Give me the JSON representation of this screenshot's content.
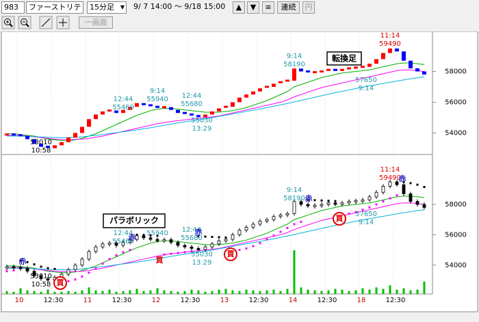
{
  "toolbar": {
    "code": "983",
    "name": "ファーストリテ",
    "interval": "15分足",
    "range": "9/ 7 14:00 〜 9/18 15:00",
    "nav": [
      "▲",
      "▼",
      "≡"
    ],
    "buttons": [
      "連続",
      "円"
    ],
    "single_view": "一画面"
  },
  "chart_data": [
    {
      "type": "block",
      "label": "転換足",
      "up_color": "#ff0000",
      "down_color": "#0000ff",
      "values": [
        53900,
        53850,
        53800,
        53600,
        53300,
        53100,
        53010,
        53200,
        53400,
        53700,
        54000,
        54400,
        54900,
        55200,
        55400,
        55460,
        55300,
        55500,
        55700,
        55940,
        55800,
        55700,
        55600,
        55680,
        55500,
        55300,
        55200,
        55100,
        55030,
        55200,
        55400,
        55600,
        55700,
        56000,
        56300,
        56500,
        56700,
        56900,
        57000,
        57200,
        57300,
        57400,
        58190,
        58000,
        57900,
        57950,
        58000,
        58100,
        58000,
        58100,
        58200,
        58250,
        58300,
        58500,
        58800,
        59200,
        59490,
        59300,
        58700,
        58200,
        58000,
        57800
      ],
      "lines": [
        {
          "color": "#00b000",
          "values": [
            53950,
            53950,
            53900,
            53850,
            53800,
            53700,
            53600,
            53550,
            53500,
            53500,
            53550,
            53650,
            53800,
            53950,
            54150,
            54350,
            54550,
            54750,
            54950,
            55150,
            55300,
            55450,
            55550,
            55600,
            55600,
            55550,
            55500,
            55450,
            55400,
            55350,
            55350,
            55350,
            55400,
            55450,
            55550,
            55650,
            55800,
            55950,
            56100,
            56300,
            56500,
            56700,
            57000,
            57150,
            57300,
            57450,
            57600,
            57700,
            57800,
            57900,
            57950,
            58000,
            58050,
            58100,
            58200,
            58300,
            58400,
            58500,
            58550,
            58550,
            58500,
            58450
          ]
        },
        {
          "color": "#ff00ff",
          "values": [
            53850,
            53850,
            53850,
            53800,
            53750,
            53700,
            53650,
            53600,
            53580,
            53570,
            53580,
            53600,
            53650,
            53720,
            53800,
            53900,
            54000,
            54100,
            54200,
            54300,
            54400,
            54500,
            54600,
            54680,
            54750,
            54800,
            54850,
            54900,
            54950,
            55000,
            55050,
            55100,
            55200,
            55300,
            55400,
            55500,
            55600,
            55700,
            55800,
            55900,
            56000,
            56150,
            56350,
            56500,
            56650,
            56800,
            56950,
            57050,
            57150,
            57250,
            57350,
            57450,
            57550,
            57650,
            57750,
            57850,
            57950,
            58050,
            58100,
            58100,
            58050,
            58000
          ]
        },
        {
          "color": "#00b4e0",
          "values": [
            53800,
            53800,
            53800,
            53780,
            53760,
            53740,
            53720,
            53700,
            53700,
            53700,
            53720,
            53750,
            53800,
            53850,
            53900,
            53960,
            54020,
            54080,
            54140,
            54200,
            54270,
            54340,
            54420,
            54500,
            54580,
            54650,
            54720,
            54790,
            54850,
            54920,
            55000,
            55080,
            55160,
            55240,
            55320,
            55400,
            55480,
            55560,
            55650,
            55740,
            55830,
            55920,
            56020,
            56120,
            56220,
            56320,
            56420,
            56520,
            56620,
            56710,
            56800,
            56890,
            56980,
            57060,
            57140,
            57220,
            57300,
            57380,
            57450,
            57520,
            57590,
            57650
          ]
        }
      ],
      "ylim": [
        52600,
        60600
      ],
      "yticks": [
        54000,
        56000,
        58000
      ],
      "annotations": [
        {
          "time": "12:44",
          "price": 55460,
          "color": "#2098a8"
        },
        {
          "time": "9:14",
          "price": 55940,
          "color": "#2098a8"
        },
        {
          "time": "12:44",
          "price": 55680,
          "color": "#2098a8"
        },
        {
          "time": "13:29",
          "price": 55030,
          "color": "#2098a8"
        },
        {
          "time": "10:58",
          "price": 53010,
          "color": "#000000"
        },
        {
          "time": "9:14",
          "price": 58190,
          "color": "#2098a8"
        },
        {
          "time": "11:14",
          "price": 59490,
          "color": "#e00000"
        },
        {
          "time": "9:14",
          "price": 57650,
          "color": "#2098a8"
        }
      ]
    },
    {
      "type": "candlestick",
      "label": "パラボリック",
      "categories": [
        null,
        null,
        "10",
        null,
        null,
        null,
        null,
        "12:30",
        null,
        null,
        null,
        null,
        "11",
        null,
        null,
        null,
        null,
        "12:30",
        null,
        null,
        null,
        null,
        "12",
        null,
        null,
        null,
        null,
        "12:30",
        null,
        null,
        null,
        null,
        "13",
        null,
        null,
        null,
        null,
        "12:30",
        null,
        null,
        null,
        null,
        "14",
        null,
        null,
        null,
        null,
        "12:30",
        null,
        null,
        null,
        null,
        "18",
        null,
        null,
        null,
        null,
        "12:30",
        null,
        null,
        null,
        null
      ],
      "sar": {
        "above_color": "#000000",
        "below_color": "#ff00ff",
        "values": [
          53600,
          53650,
          54300,
          54200,
          54050,
          53900,
          53800,
          53750,
          52900,
          52950,
          53050,
          53250,
          53500,
          53800,
          54100,
          54400,
          54650,
          54850,
          55000,
          56000,
          55980,
          55960,
          55940,
          54700,
          54750,
          54800,
          54850,
          54900,
          55900,
          55880,
          55860,
          55840,
          55820,
          54950,
          55000,
          55100,
          55250,
          55450,
          55700,
          55950,
          56200,
          56450,
          56700,
          56850,
          58300,
          58280,
          58260,
          58240,
          58220,
          57300,
          57400,
          57500,
          57650,
          57800,
          58000,
          58200,
          58400,
          58600,
          59490,
          59400,
          59300,
          59150
        ]
      },
      "volume": {
        "color": "#00c000",
        "values": [
          4,
          3,
          8,
          5,
          4,
          3,
          6,
          3,
          3,
          4,
          3,
          5,
          9,
          5,
          4,
          6,
          3,
          4,
          5,
          7,
          4,
          5,
          8,
          5,
          4,
          3,
          4,
          6,
          5,
          3,
          4,
          6,
          7,
          5,
          4,
          6,
          5,
          4,
          5,
          6,
          4,
          7,
          60,
          9,
          6,
          5,
          4,
          5,
          7,
          6,
          4,
          5,
          8,
          6,
          9,
          7,
          12,
          6,
          8,
          5,
          6,
          17
        ]
      },
      "ylim": [
        52100,
        61200
      ],
      "yticks": [
        54000,
        56000,
        58000
      ],
      "signals": [
        "赤",
        "買",
        "赤",
        "買",
        "赤",
        "買",
        "赤",
        "買",
        "赤"
      ]
    }
  ]
}
